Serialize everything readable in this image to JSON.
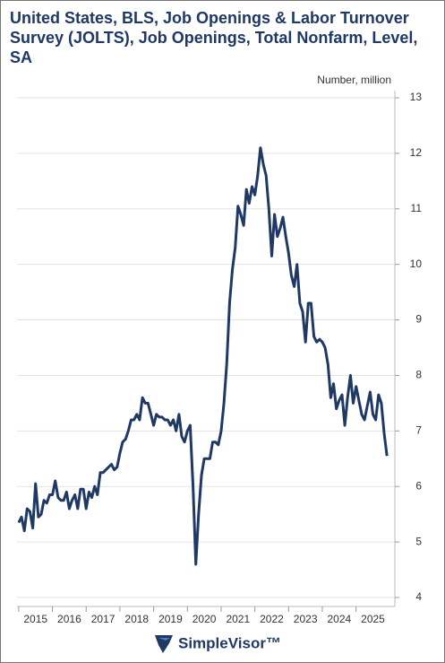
{
  "chart_data": {
    "type": "line",
    "title": "United States, BLS, Job Openings & Labor Turnover Survey (JOLTS), Job Openings, Total Nonfarm, Level, SA",
    "y_label": "Number, million",
    "brand": "SimpleVisor™",
    "series": [
      {
        "name": "Job Openings",
        "color": "#1f3864",
        "x": [
          2015,
          2015.083,
          2015.167,
          2015.25,
          2015.333,
          2015.417,
          2015.5,
          2015.583,
          2015.667,
          2015.75,
          2015.833,
          2015.917,
          2016,
          2016.083,
          2016.167,
          2016.25,
          2016.333,
          2016.417,
          2016.5,
          2016.583,
          2016.667,
          2016.75,
          2016.833,
          2016.917,
          2017,
          2017.083,
          2017.167,
          2017.25,
          2017.333,
          2017.417,
          2017.5,
          2017.583,
          2017.667,
          2017.75,
          2017.833,
          2017.917,
          2018,
          2018.083,
          2018.167,
          2018.25,
          2018.333,
          2018.417,
          2018.5,
          2018.583,
          2018.667,
          2018.75,
          2018.833,
          2018.917,
          2019,
          2019.083,
          2019.167,
          2019.25,
          2019.333,
          2019.417,
          2019.5,
          2019.583,
          2019.667,
          2019.75,
          2019.833,
          2019.917,
          2020,
          2020.083,
          2020.167,
          2020.25,
          2020.333,
          2020.417,
          2020.5,
          2020.583,
          2020.667,
          2020.75,
          2020.833,
          2020.917,
          2021,
          2021.083,
          2021.167,
          2021.25,
          2021.333,
          2021.417,
          2021.5,
          2021.583,
          2021.667,
          2021.75,
          2021.833,
          2021.917,
          2022,
          2022.083,
          2022.167,
          2022.25,
          2022.333,
          2022.417,
          2022.5,
          2022.583,
          2022.667,
          2022.75,
          2022.833,
          2022.917,
          2023,
          2023.083,
          2023.167,
          2023.25,
          2023.333,
          2023.417,
          2023.5,
          2023.583,
          2023.667,
          2023.75,
          2023.833,
          2023.917,
          2024,
          2024.083,
          2024.167,
          2024.25,
          2024.333,
          2024.417,
          2024.5,
          2024.583,
          2024.667,
          2024.75,
          2024.833,
          2024.917,
          2025,
          2025.083,
          2025.167,
          2025.25,
          2025.333,
          2025.417,
          2025.5,
          2025.583,
          2025.667,
          2025.75,
          2025.833,
          2025.917
        ],
        "values": [
          5.35,
          5.45,
          5.2,
          5.6,
          5.55,
          5.25,
          6.05,
          5.45,
          5.5,
          5.75,
          5.7,
          5.85,
          5.85,
          6.1,
          5.8,
          5.75,
          5.75,
          5.9,
          5.6,
          5.75,
          5.85,
          5.6,
          5.95,
          5.95,
          5.6,
          5.9,
          5.8,
          6.0,
          5.85,
          6.25,
          6.25,
          6.3,
          6.35,
          6.4,
          6.3,
          6.35,
          6.6,
          6.8,
          6.85,
          7.0,
          7.2,
          7.2,
          7.3,
          7.2,
          7.6,
          7.5,
          7.5,
          7.3,
          7.1,
          7.3,
          7.25,
          7.25,
          7.2,
          7.2,
          7.1,
          7.2,
          7.0,
          7.3,
          6.9,
          6.8,
          7.0,
          7.1,
          6.0,
          4.6,
          5.5,
          6.2,
          6.5,
          6.5,
          6.5,
          6.8,
          6.8,
          6.75,
          7.0,
          7.5,
          8.2,
          9.3,
          9.9,
          10.3,
          11.05,
          10.9,
          10.7,
          11.35,
          11.1,
          11.4,
          11.25,
          11.6,
          12.1,
          11.8,
          11.6,
          11.0,
          10.15,
          10.9,
          10.5,
          10.65,
          10.85,
          10.5,
          10.2,
          9.8,
          9.6,
          10.0,
          9.3,
          9.15,
          8.6,
          9.3,
          9.3,
          8.7,
          8.6,
          8.65,
          8.6,
          8.5,
          8.2,
          7.6,
          7.85,
          7.4,
          7.55,
          7.65,
          7.1,
          7.6,
          8.0,
          7.5,
          7.8,
          7.55,
          7.3,
          7.2,
          7.45,
          7.7,
          7.3,
          7.2,
          7.65,
          7.5,
          6.95,
          6.55
        ]
      }
    ],
    "xlim": [
      2014.95,
      2026.15
    ],
    "xticks": [
      2015,
      2016,
      2017,
      2018,
      2019,
      2020,
      2021,
      2022,
      2023,
      2024,
      2025
    ],
    "ylim": [
      4,
      13
    ],
    "yticks": [
      4,
      5,
      6,
      7,
      8,
      9,
      10,
      11,
      12,
      13
    ],
    "grid": true
  }
}
